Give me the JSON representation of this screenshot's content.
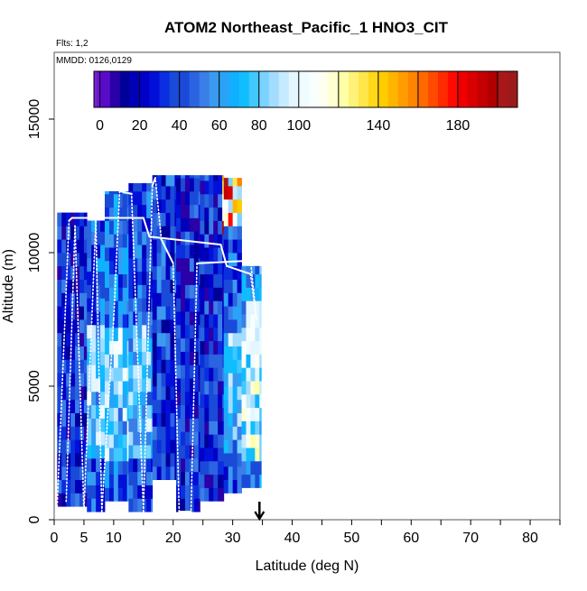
{
  "chart_data": {
    "type": "heatmap",
    "title": "ATOM2 Northeast_Pacific_1 HNO3_CIT",
    "subtitle_flights": "Flts: 1,2",
    "subtitle_dates": "MMDD: 0126,0129",
    "xlabel": "Latitude (deg N)",
    "ylabel": "Altitude (m)",
    "xlim": [
      0,
      85
    ],
    "ylim": [
      0,
      17500
    ],
    "x_ticks": [
      0,
      5,
      10,
      20,
      30,
      40,
      50,
      60,
      70,
      80
    ],
    "x_minor_ticks": [
      15,
      25,
      35,
      45,
      55,
      65,
      75,
      85
    ],
    "y_ticks": [
      0,
      5000,
      10000,
      15000
    ],
    "colorbar": {
      "min": -3,
      "max": 210,
      "tick_labels": [
        0,
        20,
        40,
        60,
        80,
        100,
        140,
        180
      ],
      "segments": [
        {
          "from": -3,
          "to": 0,
          "colors": [
            "#7b1fd6",
            "#6a12d0"
          ]
        },
        {
          "from": 0,
          "to": 20,
          "colors": [
            "#5a0bc8",
            "#2a00a8",
            "#000099",
            "#0000b8"
          ]
        },
        {
          "from": 20,
          "to": 40,
          "colors": [
            "#0000c8",
            "#0010d8",
            "#0a2ee0",
            "#1a4ad8"
          ]
        },
        {
          "from": 40,
          "to": 60,
          "colors": [
            "#1a4ad8",
            "#2a64e0",
            "#3a7ee8",
            "#3b9af0"
          ]
        },
        {
          "from": 60,
          "to": 80,
          "colors": [
            "#2aa2f6",
            "#10b0ff",
            "#10beff",
            "#40c8ff"
          ]
        },
        {
          "from": 80,
          "to": 100,
          "colors": [
            "#7ad2ff",
            "#a4dcff",
            "#c6eaff",
            "#e4f6ff"
          ]
        },
        {
          "from": 100,
          "to": 120,
          "colors": [
            "#eefbff",
            "#f8ffff",
            "#fffff0",
            "#ffffd0"
          ]
        },
        {
          "from": 120,
          "to": 140,
          "colors": [
            "#ffffa8",
            "#fff27a",
            "#ffe64a",
            "#ffd81a"
          ]
        },
        {
          "from": 140,
          "to": 160,
          "colors": [
            "#ffcc00",
            "#ffb400",
            "#ff9c00",
            "#ff8400"
          ]
        },
        {
          "from": 160,
          "to": 180,
          "colors": [
            "#ff6a00",
            "#ff4a00",
            "#ff2a00",
            "#ff0a00"
          ]
        },
        {
          "from": 180,
          "to": 200,
          "colors": [
            "#ee0000",
            "#d80000",
            "#c40000",
            "#b00000"
          ]
        },
        {
          "from": 200,
          "to": 210,
          "colors": [
            "#a81818",
            "#9c1a1a"
          ]
        }
      ]
    },
    "value_arrow_latitude": 34.5,
    "curtain_profiles": [
      {
        "lat0": 0.5,
        "lat1": 5.5,
        "alt_top": 11500,
        "alt_bottom": 500,
        "mean": 30
      },
      {
        "lat0": 5.5,
        "lat1": 8.5,
        "alt_top": 11200,
        "alt_bottom": 300,
        "mean": 45
      },
      {
        "lat0": 8.5,
        "lat1": 12.5,
        "alt_top": 12300,
        "alt_bottom": 700,
        "mean": 50
      },
      {
        "lat0": 12.5,
        "lat1": 16.5,
        "alt_top": 12600,
        "alt_bottom": 300,
        "mean": 40
      },
      {
        "lat0": 16.5,
        "lat1": 20.5,
        "alt_top": 12900,
        "alt_bottom": 1500,
        "mean": 35
      },
      {
        "lat0": 20.5,
        "lat1": 24.5,
        "alt_top": 12900,
        "alt_bottom": 300,
        "mean": 30
      },
      {
        "lat0": 24.5,
        "lat1": 28.5,
        "alt_top": 12900,
        "alt_bottom": 700,
        "mean": 30
      },
      {
        "lat0": 28.5,
        "lat1": 31.5,
        "alt_top": 12800,
        "alt_bottom": 1000,
        "mean": 40
      },
      {
        "lat0": 31.5,
        "lat1": 34.8,
        "alt_top": 9500,
        "alt_bottom": 1200,
        "mean": 60
      }
    ],
    "flight_track": [
      [
        0.5,
        500
      ],
      [
        2.5,
        11200
      ],
      [
        3,
        11300
      ],
      [
        15,
        11300
      ],
      [
        16,
        10600
      ],
      [
        28,
        10300
      ],
      [
        29,
        9500
      ],
      [
        33,
        9200
      ],
      [
        34,
        7500
      ],
      [
        33,
        9700
      ],
      [
        24,
        9600
      ],
      [
        23,
        300
      ],
      [
        21,
        300
      ],
      [
        20,
        9600
      ],
      [
        18,
        10500
      ],
      [
        17,
        12800
      ],
      [
        16.5,
        12500
      ],
      [
        15,
        300
      ],
      [
        13,
        12200
      ],
      [
        11,
        12300
      ],
      [
        10,
        7500
      ],
      [
        8,
        300
      ],
      [
        7,
        11200
      ],
      [
        5,
        300
      ],
      [
        3.5,
        11000
      ],
      [
        2,
        600
      ]
    ]
  }
}
